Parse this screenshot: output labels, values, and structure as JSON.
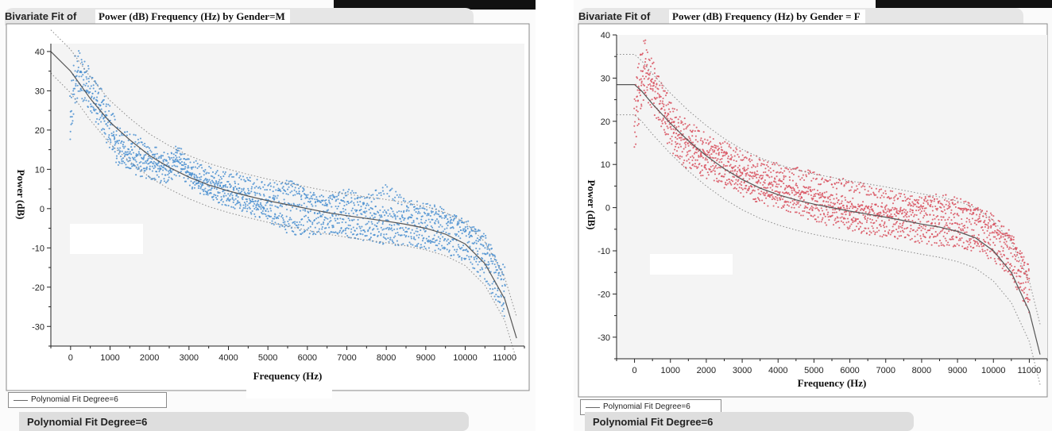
{
  "chart_data": [
    {
      "type": "scatter",
      "title_prefix": "Bivariate Fit of",
      "title": "Power (dB) Frequency (Hz) by Gender=M",
      "xlabel": "Frequency (Hz)",
      "ylabel": "Power (dB)",
      "xlim": [
        -500,
        11500
      ],
      "ylim": [
        -35,
        42
      ],
      "xticks": [
        0,
        1000,
        2000,
        3000,
        4000,
        5000,
        6000,
        7000,
        8000,
        9000,
        10000,
        11000
      ],
      "yticks": [
        -30,
        -20,
        -10,
        0,
        10,
        20,
        30,
        40
      ],
      "grid": false,
      "point_color": "#4a8fd0",
      "fit_color": "#555555",
      "fit_degree": 6,
      "fit_curve": {
        "x": [
          -500,
          0,
          500,
          1000,
          1500,
          2000,
          2500,
          3000,
          3500,
          4000,
          4500,
          5000,
          5500,
          6000,
          6500,
          7000,
          7500,
          8000,
          8500,
          9000,
          9500,
          10000,
          10500,
          11000,
          11300
        ],
        "y": [
          40,
          35,
          28,
          22,
          17.5,
          13.5,
          10.5,
          8,
          6,
          4.5,
          3.2,
          2,
          1,
          0,
          -1,
          -1.8,
          -2.5,
          -3.2,
          -4,
          -5,
          -6.5,
          -9,
          -14,
          -23,
          -33
        ]
      },
      "confidence_band": {
        "offset_db": 5.5
      },
      "series": [
        {
          "scatter_curves": [
            {
              "x": [
                0,
                100,
                200,
                300,
                400,
                600,
                800,
                1000,
                1200,
                1500,
                1800,
                2000,
                2300,
                2500,
                2700,
                3000,
                3300,
                3600,
                4000,
                4500,
                5000,
                5500,
                6000,
                6500,
                7000,
                7500,
                8000,
                8500,
                9000,
                9500,
                10000,
                10500,
                11000
              ],
              "y": [
                30,
                38,
                39,
                37,
                36,
                32,
                29,
                25,
                20,
                18,
                17,
                15,
                14,
                13,
                15,
                12,
                11,
                9,
                8,
                7,
                6,
                5,
                3,
                2,
                1,
                0,
                -1,
                -1.5,
                -2,
                -2.5,
                -4,
                -8,
                -16
              ]
            },
            {
              "x": [
                0,
                100,
                200,
                300,
                400,
                600,
                800,
                1000,
                1200,
                1500,
                1800,
                2000,
                2300,
                2500,
                2700,
                3000,
                3300,
                3600,
                4000,
                4500,
                5000,
                5500,
                6000,
                6500,
                7000,
                7500,
                8000,
                8500,
                9000,
                9500,
                10000,
                10500,
                11000
              ],
              "y": [
                26,
                34,
                36,
                34,
                33,
                29,
                27,
                22,
                17,
                15,
                14,
                13,
                12,
                11,
                13,
                10,
                8,
                7,
                5,
                4,
                2,
                1,
                0,
                -1,
                -1.5,
                -2,
                -3,
                -3.5,
                -4,
                -5,
                -7,
                -11,
                -20
              ]
            },
            {
              "x": [
                0,
                100,
                200,
                300,
                400,
                600,
                800,
                1000,
                1200,
                1500,
                1800,
                2000,
                2300,
                2500,
                2700,
                3000,
                3300,
                3600,
                4000,
                4500,
                5000,
                5500,
                6000,
                6500,
                7000,
                7500,
                8000,
                8500,
                9000,
                9500,
                10000,
                10500,
                11000
              ],
              "y": [
                20,
                30,
                33,
                31,
                30,
                26,
                24,
                19,
                14,
                12,
                11,
                11,
                10,
                9,
                12,
                8,
                6,
                4,
                3,
                1,
                -1,
                -3,
                -3,
                -3.5,
                -4,
                -5,
                -6,
                -6,
                -7,
                -8,
                -10,
                -14,
                -24
              ]
            },
            {
              "x": [
                0,
                100,
                200,
                300,
                400,
                600,
                800,
                1000,
                1200,
                1500,
                1800,
                2000,
                2300,
                2500,
                2700,
                3000,
                3300,
                3600,
                4000,
                4500,
                5000,
                5500,
                6000,
                6500,
                7000,
                7500,
                8000,
                8500,
                9000,
                9500,
                10000,
                10500,
                11000
              ],
              "y": [
                17,
                27,
                30,
                29,
                27,
                24,
                21,
                16,
                12,
                11,
                9,
                9,
                8,
                8,
                10,
                7,
                5,
                3,
                2,
                0,
                -2,
                -5,
                -6,
                -5,
                -6,
                -7,
                -8,
                -8,
                -9,
                -10,
                -12,
                -17,
                -27
              ]
            },
            {
              "x": [
                0,
                100,
                200,
                300,
                400,
                600,
                800,
                1000,
                1200,
                1500,
                1800,
                2000,
                2300,
                2500,
                2700,
                3000,
                3300,
                3600,
                4000,
                4500,
                5000,
                5500,
                6000,
                6500,
                7000,
                7500,
                8000,
                8500,
                9000,
                9500,
                10000,
                10500,
                11000
              ],
              "y": [
                22,
                32,
                35,
                33,
                31,
                28,
                25,
                21,
                16,
                14,
                13,
                12,
                11,
                10,
                14,
                9,
                7,
                6,
                5,
                3,
                1,
                7,
                3,
                2,
                4,
                2,
                5,
                1,
                0,
                -1,
                -5,
                -9,
                -18
              ]
            }
          ]
        }
      ]
    },
    {
      "type": "scatter",
      "title_prefix": "Bivariate Fit of",
      "title": "Power (dB) Frequency (Hz) by Gender = F",
      "xlabel": "Frequency (Hz)",
      "ylabel": "Power (dB)",
      "xlim": [
        -500,
        11500
      ],
      "ylim": [
        -35,
        40
      ],
      "xticks": [
        0,
        1000,
        2000,
        3000,
        4000,
        5000,
        6000,
        7000,
        8000,
        9000,
        10000,
        11000
      ],
      "yticks": [
        -30,
        -20,
        -10,
        0,
        10,
        20,
        30,
        40
      ],
      "grid": false,
      "point_color": "#d8505e",
      "fit_color": "#555555",
      "fit_degree": 6,
      "fit_curve": {
        "x": [
          -500,
          0,
          200,
          500,
          1000,
          1500,
          2000,
          2500,
          3000,
          3500,
          4000,
          4500,
          5000,
          5500,
          6000,
          6500,
          7000,
          7500,
          8000,
          8500,
          9000,
          9500,
          10000,
          10500,
          11000,
          11300
        ],
        "y": [
          28.5,
          28.5,
          27,
          24,
          19.5,
          15.5,
          12,
          9,
          6.5,
          4.5,
          3,
          1.8,
          0.8,
          0,
          -0.8,
          -1.5,
          -2.2,
          -3,
          -3.8,
          -4.5,
          -5.5,
          -7,
          -10,
          -15,
          -24,
          -34
        ]
      },
      "confidence_band": {
        "offset_db": 7
      },
      "series": [
        {
          "scatter_curves": [
            {
              "x": [
                0,
                100,
                200,
                300,
                400,
                600,
                800,
                1000,
                1200,
                1500,
                1800,
                2000,
                2300,
                2500,
                2700,
                3000,
                3300,
                3600,
                4000,
                4500,
                5000,
                5500,
                6000,
                6500,
                7000,
                7500,
                8000,
                8500,
                9000,
                9500,
                10000,
                10500,
                11000
              ],
              "y": [
                26,
                32,
                36,
                38,
                35,
                31,
                27,
                24,
                21,
                19,
                17,
                16,
                15,
                14,
                13,
                12,
                11,
                10,
                9,
                8,
                7,
                6,
                5,
                4,
                3,
                2,
                1,
                0,
                -0.5,
                -1,
                -3,
                -7,
                -15
              ]
            },
            {
              "x": [
                0,
                100,
                200,
                300,
                400,
                600,
                800,
                1000,
                1200,
                1500,
                1800,
                2000,
                2300,
                2500,
                2700,
                3000,
                3300,
                3600,
                4000,
                4500,
                5000,
                5500,
                6000,
                6500,
                7000,
                7500,
                8000,
                8500,
                9000,
                9500,
                10000,
                10500,
                11000
              ],
              "y": [
                22,
                28,
                32,
                34,
                31,
                28,
                24,
                21,
                18,
                16,
                14,
                13,
                12,
                11,
                10,
                9,
                8,
                7,
                6,
                5,
                3,
                2,
                1,
                0,
                -1,
                -1.5,
                -2,
                -3,
                -3.5,
                -4,
                -6,
                -10,
                -18
              ]
            },
            {
              "x": [
                0,
                100,
                200,
                300,
                400,
                600,
                800,
                1000,
                1200,
                1500,
                1800,
                2000,
                2300,
                2500,
                2700,
                3000,
                3300,
                3600,
                4000,
                4500,
                5000,
                5500,
                6000,
                6500,
                7000,
                7500,
                8000,
                8500,
                9000,
                9500,
                10000,
                10500,
                11000
              ],
              "y": [
                18,
                24,
                28,
                30,
                28,
                25,
                21,
                18,
                15,
                13,
                11,
                10,
                9,
                8,
                7,
                6,
                5,
                4,
                3,
                2,
                0,
                -1,
                -2,
                -2.5,
                -3,
                -4,
                -4.5,
                -5,
                -6,
                -7,
                -9,
                -13,
                -21
              ]
            },
            {
              "x": [
                0,
                100,
                200,
                300,
                400,
                600,
                800,
                1000,
                1200,
                1500,
                1800,
                2000,
                2300,
                2500,
                2700,
                3000,
                3300,
                3600,
                4000,
                4500,
                5000,
                5500,
                6000,
                6500,
                7000,
                7500,
                8000,
                8500,
                9000,
                9500,
                10000,
                10500,
                11000
              ],
              "y": [
                14,
                20,
                24,
                27,
                25,
                22,
                18,
                15,
                12,
                10,
                9,
                8,
                7,
                6,
                5,
                4,
                3,
                2,
                1,
                0,
                -2,
                -3,
                -4,
                -5,
                -5.5,
                -6,
                -7,
                -7.5,
                -8,
                -9,
                -11,
                -15,
                -23
              ]
            },
            {
              "x": [
                0,
                100,
                200,
                300,
                400,
                600,
                800,
                1000,
                1200,
                1500,
                1800,
                2000,
                2300,
                2500,
                2700,
                3000,
                3300,
                3600,
                4000,
                4500,
                5000,
                5500,
                6000,
                6500,
                7000,
                7500,
                8000,
                8500,
                9000,
                9500,
                10000,
                10500,
                11000
              ],
              "y": [
                20,
                26,
                30,
                32,
                30,
                27,
                23,
                20,
                17,
                15,
                13,
                12,
                14,
                13,
                9,
                8,
                7,
                6,
                5,
                4,
                3,
                1,
                0,
                -1,
                0,
                -1,
                1,
                2,
                1,
                -1,
                -4,
                -8,
                -16
              ]
            }
          ]
        }
      ]
    }
  ],
  "panels": [
    {
      "legend_label": "Polynomial Fit Degree=6",
      "footer_label": "Polynomial Fit Degree=6"
    },
    {
      "legend_label": "Polynomial Fit Degree=6",
      "footer_label": "Polynomial Fit Degree=6"
    }
  ]
}
